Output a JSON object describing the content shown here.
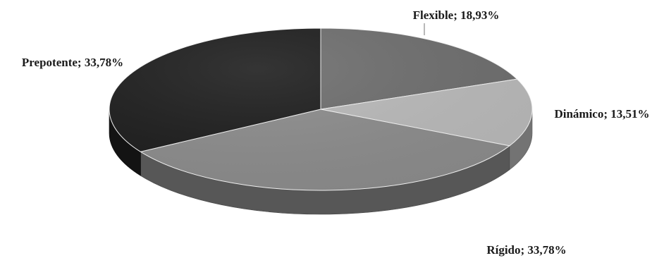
{
  "chart_data": {
    "type": "pie",
    "style": "3d",
    "title": "",
    "slices": [
      {
        "label": "Flexible",
        "percent": 18.93,
        "display": "Flexible; 18,93%",
        "color": "#6e6e6e"
      },
      {
        "label": "Dinámico",
        "percent": 13.51,
        "display": "Dinámico; 13,51%",
        "color": "#b9b9b9"
      },
      {
        "label": "Rígido",
        "percent": 33.78,
        "display": "Rígido; 33,78%",
        "color": "#8c8c8c"
      },
      {
        "label": "Prepotente",
        "percent": 33.78,
        "display": "Prepotente; 33,78%",
        "color": "#1e1e1e"
      }
    ],
    "legend": "none"
  }
}
